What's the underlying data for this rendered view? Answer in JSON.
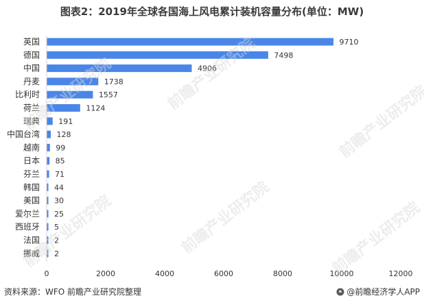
{
  "title": "图表2：2019年全球各国海上风电累计装机容量分布(单位：MW)",
  "source": "资料来源：WFO 前瞻产业研究院整理",
  "brand": "@前瞻经济学人APP",
  "watermark": "前瞻产业研究院",
  "colors": {
    "bar": "#4a86e8",
    "text": "#333333",
    "title": "#3a3a3a"
  },
  "chart_data": {
    "type": "bar",
    "orientation": "horizontal",
    "title": "图表2：2019年全球各国海上风电累计装机容量分布(单位：MW)",
    "categories": [
      "英国",
      "德国",
      "中国",
      "丹麦",
      "比利时",
      "荷兰",
      "瑞典",
      "中国台湾",
      "越南",
      "日本",
      "芬兰",
      "韩国",
      "美国",
      "爱尔兰",
      "西班牙",
      "法国",
      "挪威"
    ],
    "values": [
      9710,
      7498,
      4906,
      1738,
      1557,
      1124,
      191,
      128,
      99,
      85,
      71,
      44,
      30,
      25,
      5,
      2,
      2
    ],
    "xlim": [
      0,
      12000
    ],
    "xticks": [
      0,
      2000,
      4000,
      6000,
      8000,
      10000,
      12000
    ],
    "grid": false,
    "data_labels": true,
    "legend": "none"
  }
}
